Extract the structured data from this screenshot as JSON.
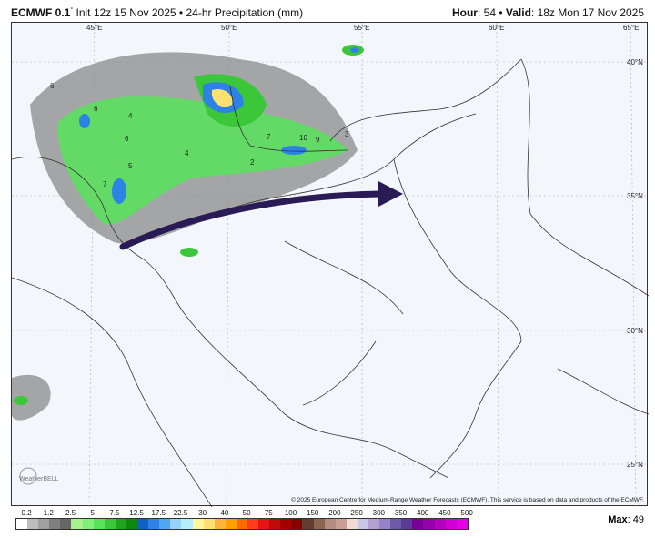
{
  "header": {
    "model": "ECMWF 0.1",
    "degree": "°",
    "init": "Init 12z 15 Nov 2025",
    "sep": "•",
    "product": "24-hr Precipitation (mm)",
    "hour_label": "Hour",
    "hour": "54",
    "valid_label": "Valid",
    "valid": "18z Mon 17 Nov 2025"
  },
  "map": {
    "lon_labels": [
      "45°E",
      "50°E",
      "55°E",
      "60°E",
      "65°E"
    ],
    "lat_labels": [
      "40°N",
      "35°N",
      "30°N",
      "25°N"
    ],
    "value_labels": [
      "6",
      "6",
      "4",
      "6",
      "4",
      "5",
      "7",
      "7",
      "10",
      "9",
      "2",
      "3"
    ],
    "arrow_color": "#2a1a55",
    "logo": "WeatherBELL",
    "copyright": "© 2025 European Centre for Medium-Range Weather Forecasts (ECMWF). This service is based on data and products of the ECMWF."
  },
  "legend": {
    "ticks": [
      "0.2",
      "1.2",
      "2.5",
      "5",
      "7.5",
      "12.5",
      "17.5",
      "22.5",
      "30",
      "40",
      "50",
      "75",
      "100",
      "150",
      "200",
      "250",
      "300",
      "350",
      "400",
      "450",
      "500"
    ],
    "colors": [
      "#ffffff",
      "#bdbdbd",
      "#a0a0a0",
      "#808080",
      "#666666",
      "#a6f28f",
      "#7ff07a",
      "#59e35a",
      "#3cc73a",
      "#1ea51e",
      "#0d8a0d",
      "#1060c8",
      "#2e82e6",
      "#50a5f5",
      "#96d2fa",
      "#b4f0fa",
      "#fff59a",
      "#ffe070",
      "#ffb43c",
      "#ffa000",
      "#ff6a00",
      "#ff3c1e",
      "#e61414",
      "#c00a0a",
      "#a50000",
      "#870000",
      "#643c32",
      "#8c6450",
      "#b48c82",
      "#c8a096",
      "#f0dcd2",
      "#c8c8e6",
      "#b4a0d2",
      "#9682c8",
      "#6e5aaa",
      "#5a3c96",
      "#780096",
      "#9600aa",
      "#b400be",
      "#d200d2",
      "#e600e6"
    ],
    "max_label": "Max",
    "max_value": "49"
  }
}
